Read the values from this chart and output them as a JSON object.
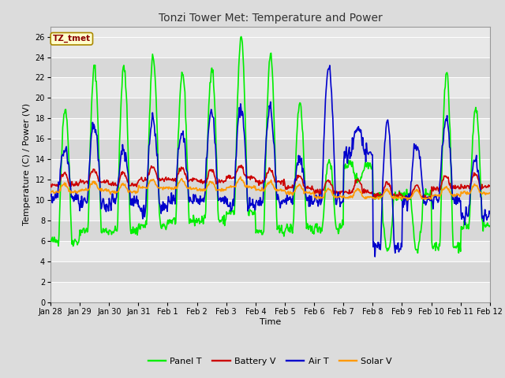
{
  "title": "Tonzi Tower Met: Temperature and Power",
  "xlabel": "Time",
  "ylabel": "Temperature (C) / Power (V)",
  "tz_label": "TZ_tmet",
  "ylim": [
    0,
    27
  ],
  "yticks": [
    0,
    2,
    4,
    6,
    8,
    10,
    12,
    14,
    16,
    18,
    20,
    22,
    24,
    26
  ],
  "xtick_labels": [
    "Jan 28",
    "Jan 29",
    "Jan 30",
    "Jan 31",
    "Feb 1",
    "Feb 2",
    "Feb 3",
    "Feb 4",
    "Feb 5",
    "Feb 6",
    "Feb 7",
    "Feb 8",
    "Feb 9",
    "Feb 10",
    "Feb 11",
    "Feb 12"
  ],
  "colors": {
    "panel_t": "#00EE00",
    "battery_v": "#CC0000",
    "air_t": "#0000CC",
    "solar_v": "#FF9900"
  },
  "legend_labels": [
    "Panel T",
    "Battery V",
    "Air T",
    "Solar V"
  ],
  "bg_color": "#DCDCDC",
  "plot_bg_light": "#E8E8E8",
  "plot_bg_dark": "#D8D8D8",
  "grid_color": "#FFFFFF",
  "linewidth": 1.2,
  "title_fontsize": 10,
  "axis_fontsize": 8,
  "tick_fontsize": 7,
  "legend_fontsize": 8
}
